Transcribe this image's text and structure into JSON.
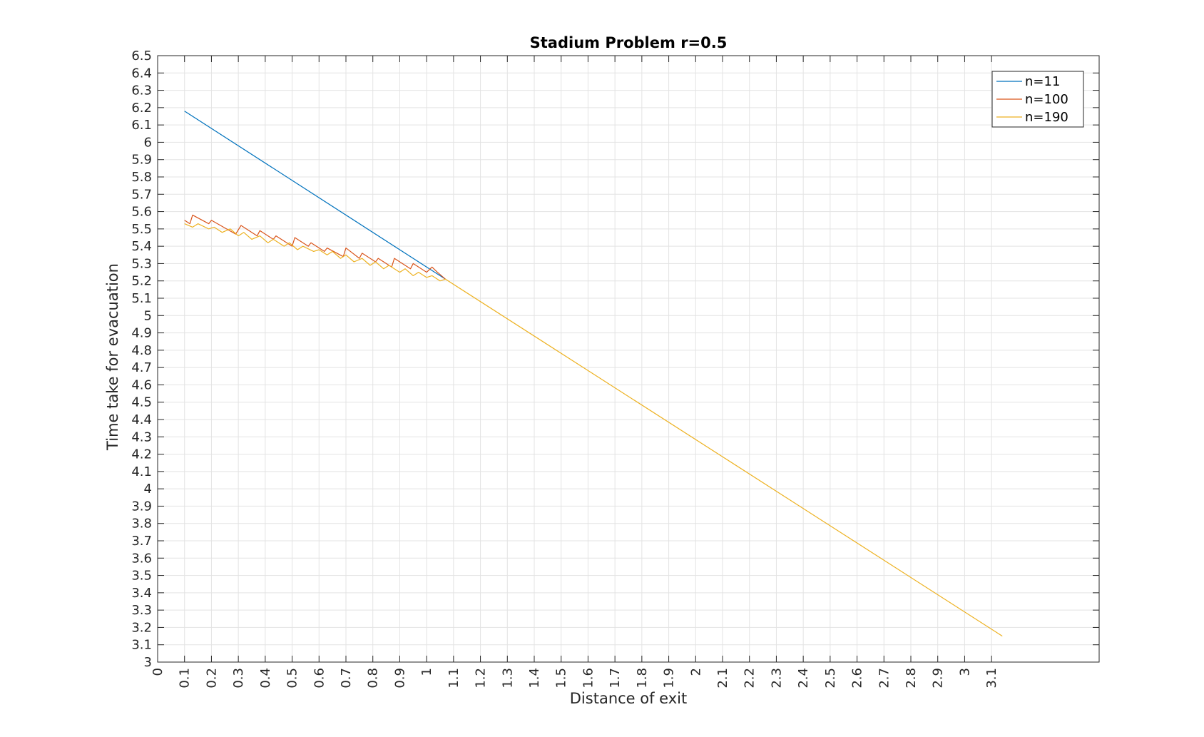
{
  "chart_data": {
    "type": "line",
    "title": "Stadium Problem r=0.5",
    "xlabel": "Distance of exit",
    "ylabel": "Time take for evacuation",
    "xlim": [
      0,
      3.5
    ],
    "ylim": [
      3,
      6.5
    ],
    "grid": true,
    "legend_position": "top-right",
    "x_ticks": [
      "0",
      "0.1",
      "0.2",
      "0.3",
      "0.4",
      "0.5",
      "0.6",
      "0.7",
      "0.8",
      "0.9",
      "1",
      "1.1",
      "1.2",
      "1.3",
      "1.4",
      "1.5",
      "1.6",
      "1.7",
      "1.8",
      "1.9",
      "2",
      "2.1",
      "2.2",
      "2.3",
      "2.4",
      "2.5",
      "2.6",
      "2.7",
      "2.8",
      "2.9",
      "3",
      "3.1"
    ],
    "y_ticks": [
      "3",
      "3.1",
      "3.2",
      "3.3",
      "3.4",
      "3.5",
      "3.6",
      "3.7",
      "3.8",
      "3.9",
      "4",
      "4.1",
      "4.2",
      "4.3",
      "4.4",
      "4.5",
      "4.6",
      "4.7",
      "4.8",
      "4.9",
      "5",
      "5.1",
      "5.2",
      "5.3",
      "5.4",
      "5.5",
      "5.6",
      "5.7",
      "5.8",
      "5.9",
      "6",
      "6.1",
      "6.2",
      "6.3",
      "6.4",
      "6.5"
    ],
    "series": [
      {
        "name": "n=11",
        "color": "#0072BD",
        "x": [
          0.1,
          1.07
        ],
        "y": [
          6.18,
          5.21
        ]
      },
      {
        "name": "n=100",
        "color": "#D95319",
        "x": [
          0.1,
          0.12,
          0.13,
          0.19,
          0.2,
          0.29,
          0.31,
          0.37,
          0.38,
          0.43,
          0.44,
          0.5,
          0.51,
          0.56,
          0.57,
          0.62,
          0.63,
          0.69,
          0.7,
          0.75,
          0.76,
          0.81,
          0.82,
          0.87,
          0.88,
          0.94,
          0.95,
          1.0,
          1.02,
          1.04,
          1.07
        ],
        "y": [
          5.55,
          5.53,
          5.58,
          5.53,
          5.55,
          5.47,
          5.52,
          5.46,
          5.49,
          5.44,
          5.46,
          5.4,
          5.45,
          5.4,
          5.42,
          5.37,
          5.39,
          5.34,
          5.39,
          5.33,
          5.36,
          5.31,
          5.33,
          5.28,
          5.33,
          5.27,
          5.3,
          5.25,
          5.28,
          5.25,
          5.21
        ]
      },
      {
        "name": "n=190",
        "color": "#EDB120",
        "x": [
          0.1,
          0.13,
          0.15,
          0.19,
          0.21,
          0.24,
          0.27,
          0.3,
          0.32,
          0.35,
          0.38,
          0.41,
          0.43,
          0.47,
          0.49,
          0.52,
          0.54,
          0.58,
          0.6,
          0.63,
          0.65,
          0.68,
          0.7,
          0.73,
          0.76,
          0.79,
          0.81,
          0.84,
          0.86,
          0.9,
          0.92,
          0.95,
          0.97,
          1.0,
          1.02,
          1.05,
          1.07,
          3.14
        ],
        "y": [
          5.53,
          5.51,
          5.53,
          5.5,
          5.51,
          5.48,
          5.5,
          5.46,
          5.48,
          5.44,
          5.46,
          5.42,
          5.44,
          5.4,
          5.42,
          5.38,
          5.4,
          5.37,
          5.38,
          5.35,
          5.37,
          5.33,
          5.35,
          5.31,
          5.33,
          5.29,
          5.31,
          5.27,
          5.29,
          5.25,
          5.27,
          5.23,
          5.25,
          5.22,
          5.23,
          5.2,
          5.21,
          3.15
        ]
      }
    ]
  }
}
